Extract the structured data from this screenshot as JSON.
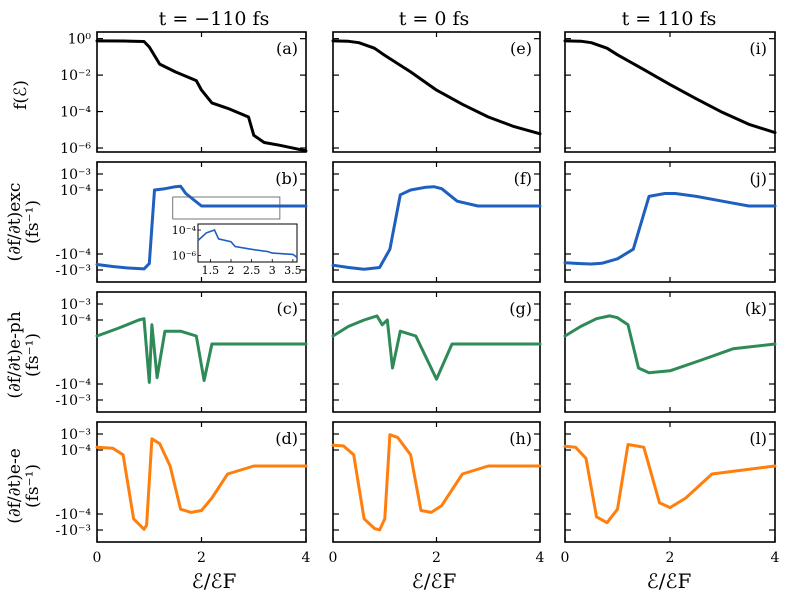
{
  "titles": [
    "t = −110 fs",
    "t = 0 fs",
    "t = 110 fs"
  ],
  "xlabel": "ℰ/ℰF",
  "xticks": [
    "0",
    "2",
    "4"
  ],
  "row_labels": [
    {
      "main": "f(ℰ)",
      "unit": ""
    },
    {
      "main": "(∂f/∂t)exc",
      "unit": "(fs⁻¹)"
    },
    {
      "main": "(∂f/∂t)e-ph",
      "unit": "(fs⁻¹)"
    },
    {
      "main": "(∂f/∂t)e-e",
      "unit": "(fs⁻¹)"
    }
  ],
  "row0_yticks": [
    "10⁰",
    "10⁻²",
    "10⁻⁴",
    "10⁻⁶"
  ],
  "rate_yticks": [
    "10⁻³",
    "10⁻⁴",
    "-10⁻⁴",
    "-10⁻³"
  ],
  "inset_yticks": [
    "10⁻⁴",
    "10⁻⁶"
  ],
  "inset_xticks": [
    "1.5",
    "2",
    "2.5",
    "3",
    "3.5"
  ],
  "colors": {
    "distribution": "#000000",
    "excitation": "#1f5fbf",
    "electron_phonon": "#2e8b57",
    "electron_electron": "#ff7f0e"
  },
  "chart_data": [
    {
      "type": "line",
      "row": 0,
      "col": 0,
      "panel": "(a)",
      "title": "t = −110 fs",
      "ylabel": "f(ℰ)",
      "yscale": "log",
      "ylim": [
        1e-06,
        1
      ],
      "xlim": [
        0,
        4
      ],
      "x": [
        0,
        0.5,
        0.9,
        1.0,
        1.2,
        1.5,
        1.9,
        2.0,
        2.2,
        2.5,
        2.9,
        3.0,
        3.2,
        3.5,
        4.0
      ],
      "y": [
        0.75,
        0.74,
        0.7,
        0.35,
        0.04,
        0.015,
        0.005,
        0.0015,
        0.0003,
        0.00015,
        5e-05,
        5e-06,
        2e-06,
        1.4e-06,
        7e-07
      ]
    },
    {
      "type": "line",
      "row": 0,
      "col": 1,
      "panel": "(e)",
      "title": "t = 0 fs",
      "ylabel": "f(ℰ)",
      "yscale": "log",
      "ylim": [
        1e-06,
        1
      ],
      "xlim": [
        0,
        4
      ],
      "x": [
        0,
        0.3,
        0.5,
        0.8,
        1.0,
        1.5,
        2.0,
        2.5,
        3.0,
        3.5,
        4.0
      ],
      "y": [
        0.75,
        0.72,
        0.6,
        0.3,
        0.12,
        0.015,
        0.0015,
        0.00025,
        5e-05,
        1.5e-05,
        6e-06
      ]
    },
    {
      "type": "line",
      "row": 0,
      "col": 2,
      "panel": "(i)",
      "title": "t = 110 fs",
      "ylabel": "f(ℰ)",
      "yscale": "log",
      "ylim": [
        1e-06,
        1
      ],
      "xlim": [
        0,
        4
      ],
      "x": [
        0,
        0.3,
        0.5,
        0.8,
        1.0,
        1.5,
        2.0,
        2.5,
        3.0,
        3.5,
        4.0
      ],
      "y": [
        0.75,
        0.73,
        0.6,
        0.3,
        0.13,
        0.02,
        0.003,
        0.0005,
        9e-05,
        2e-05,
        7e-06
      ]
    },
    {
      "type": "line",
      "row": 1,
      "col": 0,
      "panel": "(b)",
      "ylabel": "(∂f/∂t)exc (fs⁻¹)",
      "yscale": "symlog",
      "ylim": [
        -0.001,
        0.001
      ],
      "xlim": [
        0,
        4
      ],
      "x": [
        0,
        0.3,
        0.6,
        0.9,
        1.0,
        1.1,
        1.3,
        1.5,
        1.6,
        1.7,
        2.0,
        2.5,
        3.0,
        3.5,
        4.0
      ],
      "y": [
        -0.00045,
        -0.0006,
        -0.00075,
        -0.00085,
        -0.0004,
        0.0001,
        0.00012,
        0.00016,
        0.00017,
        6e-05,
        1e-05,
        1e-05,
        1e-05,
        1e-05,
        1e-05
      ]
    },
    {
      "type": "line",
      "row": 1,
      "col": 1,
      "panel": "(f)",
      "ylabel": "(∂f/∂t)exc (fs⁻¹)",
      "yscale": "symlog",
      "ylim": [
        -0.001,
        0.001
      ],
      "xlim": [
        0,
        4
      ],
      "x": [
        0,
        0.3,
        0.6,
        0.9,
        1.1,
        1.3,
        1.5,
        1.8,
        1.95,
        2.1,
        2.4,
        2.8,
        3.0,
        3.5,
        4.0
      ],
      "y": [
        -0.0005,
        -0.0007,
        -0.0009,
        -0.0007,
        -5e-05,
        5e-05,
        0.0001,
        0.00015,
        0.00016,
        0.00012,
        2e-05,
        1e-05,
        1e-05,
        1e-05,
        1e-05
      ]
    },
    {
      "type": "line",
      "row": 1,
      "col": 2,
      "panel": "(j)",
      "ylabel": "(∂f/∂t)exc (fs⁻¹)",
      "yscale": "symlog",
      "ylim": [
        -0.001,
        0.001
      ],
      "xlim": [
        0,
        4
      ],
      "x": [
        0,
        0.3,
        0.5,
        0.7,
        1.0,
        1.3,
        1.6,
        1.9,
        2.1,
        2.5,
        3.0,
        3.5,
        4.0
      ],
      "y": [
        -0.00035,
        -0.0004,
        -0.00042,
        -0.00038,
        -0.0002,
        -5e-05,
        4e-05,
        6e-05,
        6e-05,
        4e-05,
        2e-05,
        1e-05,
        1e-05
      ]
    },
    {
      "type": "line",
      "row": 2,
      "col": 0,
      "panel": "(c)",
      "ylabel": "(∂f/∂t)e-ph (fs⁻¹)",
      "yscale": "symlog",
      "ylim": [
        -0.001,
        0.001
      ],
      "xlim": [
        0,
        4
      ],
      "x": [
        0,
        0.4,
        0.8,
        0.9,
        1.0,
        1.05,
        1.15,
        1.3,
        1.6,
        1.9,
        2.05,
        2.2,
        2.6,
        3.0,
        4.0
      ],
      "y": [
        1e-05,
        3e-05,
        0.0001,
        0.00012,
        -8e-05,
        5e-05,
        -4e-05,
        2e-05,
        2e-05,
        1e-05,
        -6e-05,
        5e-06,
        5e-06,
        5e-06,
        5e-06
      ]
    },
    {
      "type": "line",
      "row": 2,
      "col": 1,
      "panel": "(g)",
      "ylabel": "(∂f/∂t)e-ph (fs⁻¹)",
      "yscale": "symlog",
      "ylim": [
        -0.001,
        0.001
      ],
      "xlim": [
        0,
        4
      ],
      "x": [
        0,
        0.3,
        0.6,
        0.85,
        0.95,
        1.05,
        1.15,
        1.3,
        1.6,
        2.0,
        2.3,
        2.8,
        3.3,
        4.0
      ],
      "y": [
        1e-05,
        4e-05,
        0.0001,
        0.00018,
        5e-05,
        0.0001,
        -1e-05,
        2e-05,
        1e-05,
        -5e-05,
        5e-06,
        5e-06,
        5e-06,
        5e-06
      ]
    },
    {
      "type": "line",
      "row": 2,
      "col": 2,
      "panel": "(k)",
      "ylabel": "(∂f/∂t)e-ph (fs⁻¹)",
      "yscale": "symlog",
      "ylim": [
        -0.001,
        0.001
      ],
      "xlim": [
        0,
        4
      ],
      "x": [
        0,
        0.3,
        0.6,
        0.85,
        1.0,
        1.2,
        1.4,
        1.6,
        2.0,
        2.6,
        3.2,
        4.0
      ],
      "y": [
        1e-05,
        4e-05,
        0.00012,
        0.00018,
        0.00014,
        5e-05,
        -1e-05,
        -2e-05,
        -1.5e-05,
        -5e-06,
        2e-06,
        5e-06
      ]
    },
    {
      "type": "line",
      "row": 3,
      "col": 0,
      "panel": "(d)",
      "ylabel": "(∂f/∂t)e-e (fs⁻¹)",
      "yscale": "symlog",
      "ylim": [
        -0.001,
        0.001
      ],
      "xlim": [
        0,
        4
      ],
      "x": [
        0,
        0.3,
        0.5,
        0.7,
        0.9,
        0.95,
        1.05,
        1.2,
        1.4,
        1.6,
        1.8,
        2.0,
        2.2,
        2.5,
        3.0,
        4.0
      ],
      "y": [
        0.00015,
        0.00013,
        5e-05,
        -0.0002,
        -0.0009,
        -0.0005,
        0.0005,
        0.00025,
        1e-05,
        -5e-05,
        -8e-05,
        -6e-05,
        -1e-05,
        5e-06,
        1e-05,
        1e-05
      ]
    },
    {
      "type": "line",
      "row": 3,
      "col": 1,
      "panel": "(h)",
      "ylabel": "(∂f/∂t)e-e (fs⁻¹)",
      "yscale": "symlog",
      "ylim": [
        -0.001,
        0.001
      ],
      "xlim": [
        0,
        4
      ],
      "x": [
        0,
        0.2,
        0.4,
        0.6,
        0.8,
        0.9,
        1.0,
        1.1,
        1.25,
        1.5,
        1.7,
        1.9,
        2.1,
        2.5,
        3.0,
        4.0
      ],
      "y": [
        0.0002,
        0.00018,
        5e-05,
        -0.0002,
        -0.0008,
        -0.0016,
        -0.0002,
        0.0009,
        0.0006,
        5e-05,
        -6e-05,
        -8e-05,
        -3e-05,
        5e-06,
        1e-05,
        1e-05
      ]
    },
    {
      "type": "line",
      "row": 3,
      "col": 2,
      "panel": "(l)",
      "ylabel": "(∂f/∂t)e-e (fs⁻¹)",
      "yscale": "symlog",
      "ylim": [
        -0.001,
        0.001
      ],
      "xlim": [
        0,
        4
      ],
      "x": [
        0,
        0.2,
        0.4,
        0.6,
        0.8,
        1.0,
        1.2,
        1.5,
        1.8,
        2.0,
        2.3,
        2.8,
        4.0
      ],
      "y": [
        0.00017,
        0.00015,
        3e-05,
        -0.00015,
        -0.00035,
        -5e-05,
        0.00022,
        0.00015,
        -2e-05,
        -4e-05,
        -1e-05,
        5e-06,
        1e-05
      ]
    },
    {
      "type": "line",
      "inset": true,
      "parent_panel": "(b)",
      "yscale": "log",
      "ylim": [
        3e-07,
        0.0003
      ],
      "xlim": [
        1.2,
        3.6
      ],
      "x": [
        1.2,
        1.4,
        1.6,
        1.7,
        2.0,
        2.1,
        2.5,
        2.9,
        3.0,
        3.5,
        3.6
      ],
      "y": [
        1.5e-05,
        6e-05,
        0.0001,
        2e-05,
        1.2e-05,
        5e-06,
        3e-06,
        2e-06,
        1.5e-06,
        1.2e-06,
        7e-07
      ]
    }
  ]
}
